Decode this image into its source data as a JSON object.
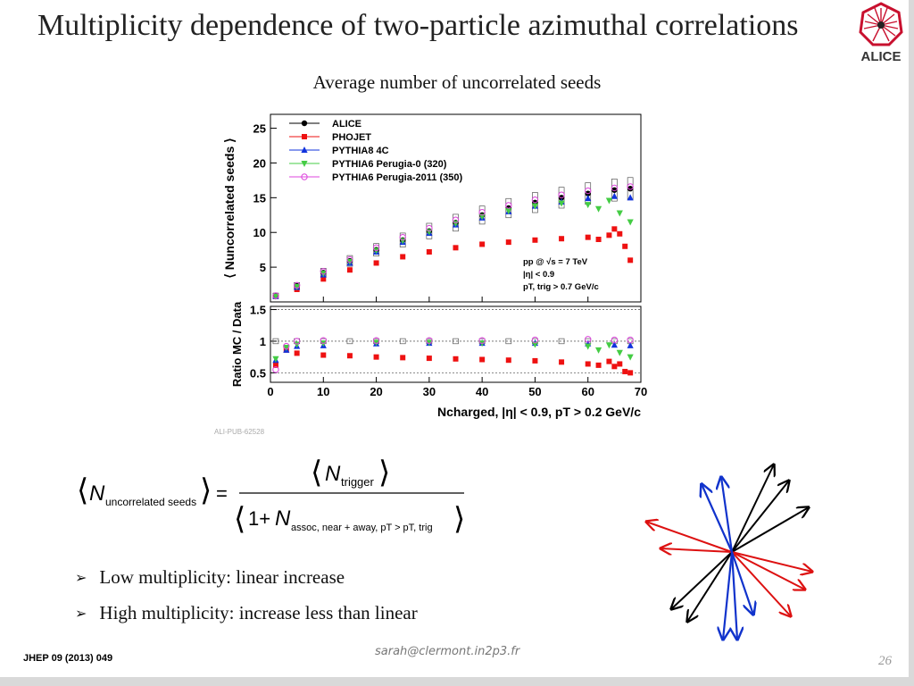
{
  "slide": {
    "title": "Multiplicity dependence of two-particle azimuthal correlations",
    "subtitle": "Average number of uncorrelated seeds",
    "logo_text": "ALICE",
    "bullets": [
      "Low multiplicity: linear increase",
      "High multiplicity: increase less than linear"
    ],
    "reference": "JHEP 09 (2013) 049",
    "email": "sarah@clermont.in2p3.fr",
    "page_number": "26",
    "pub_id": "ALI-PUB-62528",
    "formula": {
      "lhs": "N",
      "lhs_sub": "uncorrelated seeds",
      "equals": "=",
      "num": "N",
      "num_sub": "trigger",
      "den_one": "1+",
      "den": "N",
      "den_sub": "assoc, near + away, pT > pT, trig"
    }
  },
  "chart_data": {
    "type": "scatter",
    "xlabel": "Ncharged, |η| < 0.9, pT > 0.2 GeV/c",
    "ylabel_top": "⟨ Nuncorrelated seeds ⟩",
    "ylabel_bottom": "Ratio MC / Data",
    "xlim": [
      0,
      70
    ],
    "ylim_top": [
      0,
      27
    ],
    "ylim_bottom": [
      0.35,
      1.55
    ],
    "x_ticks": [
      "0",
      "10",
      "20",
      "30",
      "40",
      "50",
      "60",
      "70"
    ],
    "y_ticks_top": [
      "5",
      "10",
      "15",
      "20",
      "25"
    ],
    "y_ticks_bottom": [
      "0.5",
      "1",
      "1.5"
    ],
    "annotation": [
      "pp @ √s = 7 TeV",
      "|η|   < 0.9",
      "pT, trig   > 0.7 GeV/c"
    ],
    "legend_position": "top-left",
    "series": [
      {
        "name": "ALICE",
        "color": "#000000",
        "marker": "circle",
        "x": [
          1,
          5,
          10,
          15,
          20,
          25,
          30,
          35,
          40,
          45,
          50,
          55,
          60,
          65,
          68
        ],
        "y": [
          0.9,
          2.3,
          4.2,
          5.9,
          7.5,
          8.9,
          10.2,
          11.4,
          12.5,
          13.5,
          14.3,
          15.0,
          15.6,
          16.1,
          16.3
        ]
      },
      {
        "name": "PHOJET",
        "color": "#ee1111",
        "marker": "square",
        "x": [
          1,
          5,
          10,
          15,
          20,
          25,
          30,
          35,
          40,
          45,
          50,
          55,
          60,
          62,
          64,
          65,
          66,
          67,
          68
        ],
        "y": [
          0.8,
          1.8,
          3.3,
          4.6,
          5.6,
          6.5,
          7.2,
          7.8,
          8.3,
          8.6,
          8.9,
          9.1,
          9.3,
          9.0,
          9.6,
          10.5,
          9.8,
          8.0,
          6.0
        ]
      },
      {
        "name": "PYTHIA8 4C",
        "color": "#1133dd",
        "marker": "triangle",
        "x": [
          1,
          5,
          10,
          15,
          20,
          25,
          30,
          35,
          40,
          45,
          50,
          55,
          60,
          65,
          68
        ],
        "y": [
          0.8,
          2.1,
          3.9,
          5.6,
          7.2,
          8.6,
          9.9,
          11.1,
          12.1,
          13.0,
          13.8,
          14.4,
          14.9,
          15.2,
          15.0
        ]
      },
      {
        "name": "PYTHIA6 Perugia-0 (320)",
        "color": "#44cc44",
        "marker": "triangle-down",
        "x": [
          1,
          5,
          10,
          15,
          20,
          25,
          30,
          35,
          40,
          45,
          50,
          55,
          60,
          62,
          64,
          66,
          68
        ],
        "y": [
          0.8,
          2.2,
          4.1,
          5.8,
          7.4,
          8.8,
          10.1,
          11.3,
          12.3,
          13.1,
          13.8,
          14.2,
          14.0,
          13.4,
          14.6,
          12.8,
          11.5
        ]
      },
      {
        "name": "PYTHIA6 Perugia-2011 (350)",
        "color": "#dd44dd",
        "marker": "circle-open",
        "x": [
          1,
          5,
          10,
          15,
          20,
          25,
          30,
          35,
          40,
          45,
          50,
          55,
          60,
          65,
          68
        ],
        "y": [
          0.9,
          2.4,
          4.4,
          6.1,
          7.8,
          9.3,
          10.6,
          11.8,
          12.9,
          13.9,
          14.7,
          15.4,
          16.0,
          16.4,
          16.6
        ]
      }
    ],
    "ratio_series": [
      {
        "name": "PHOJET",
        "x": [
          1,
          3,
          5,
          10,
          15,
          20,
          25,
          30,
          35,
          40,
          45,
          50,
          55,
          60,
          62,
          64,
          65,
          66,
          67,
          68
        ],
        "y": [
          0.62,
          0.86,
          0.81,
          0.78,
          0.77,
          0.75,
          0.74,
          0.73,
          0.72,
          0.71,
          0.7,
          0.69,
          0.67,
          0.64,
          0.62,
          0.68,
          0.6,
          0.64,
          0.52,
          0.5
        ]
      },
      {
        "name": "PYTHIA8 4C",
        "x": [
          1,
          3,
          5,
          10,
          20,
          30,
          40,
          50,
          60,
          65,
          68
        ],
        "y": [
          0.7,
          0.86,
          0.92,
          0.93,
          0.96,
          0.97,
          0.97,
          0.97,
          0.96,
          0.94,
          0.93
        ]
      },
      {
        "name": "PYTHIA6 Perugia-0 (320)",
        "x": [
          1,
          3,
          5,
          10,
          20,
          30,
          40,
          50,
          60,
          62,
          64,
          66,
          68
        ],
        "y": [
          0.72,
          0.9,
          0.95,
          0.97,
          0.98,
          0.98,
          0.97,
          0.95,
          0.92,
          0.86,
          0.94,
          0.82,
          0.75
        ]
      },
      {
        "name": "PYTHIA6 Perugia-2011 (350)",
        "x": [
          1,
          3,
          5,
          10,
          20,
          30,
          40,
          50,
          60,
          65,
          68
        ],
        "y": [
          0.55,
          0.92,
          1.0,
          1.01,
          1.01,
          1.01,
          1.01,
          1.02,
          1.03,
          1.02,
          1.02
        ]
      }
    ]
  },
  "diagram": {
    "colors": {
      "black": "#000000",
      "red": "#dd1111",
      "blue": "#1133cc"
    }
  }
}
